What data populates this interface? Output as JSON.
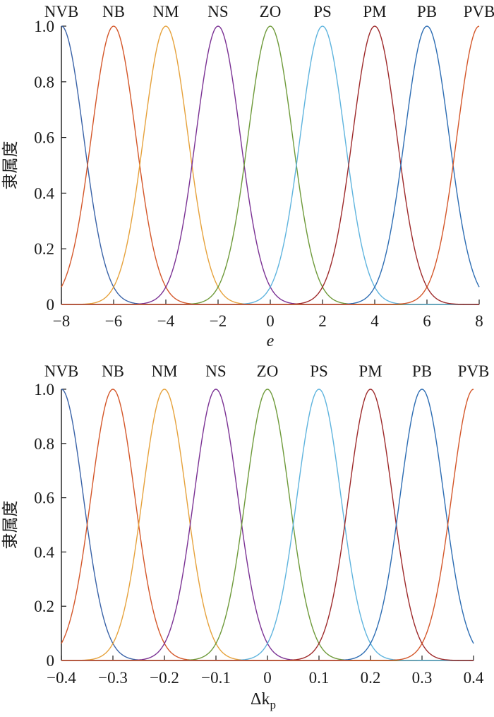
{
  "chart_data": [
    {
      "type": "line",
      "title": "",
      "xlabel": "e",
      "ylabel": "隶属度",
      "xlim": [
        -8,
        8
      ],
      "ylim": [
        0,
        1
      ],
      "x_ticks": [
        "−8",
        "−6",
        "−4",
        "−2",
        "0",
        "2",
        "4",
        "6",
        "8"
      ],
      "y_ticks": [
        "0",
        "0.2",
        "0.4",
        "0.6",
        "0.8",
        "1.0"
      ],
      "curve_shape": "gaussian",
      "sigma": 0.85,
      "grid": false,
      "legend": "none",
      "series": [
        {
          "name": "NVB",
          "center": -8,
          "color": "#3a63a8"
        },
        {
          "name": "NB",
          "center": -6,
          "color": "#d4572a"
        },
        {
          "name": "NM",
          "center": -4,
          "color": "#e6a23c"
        },
        {
          "name": "NS",
          "center": -2,
          "color": "#7b3294"
        },
        {
          "name": "ZO",
          "center": 0,
          "color": "#6e9a3a"
        },
        {
          "name": "PS",
          "center": 2,
          "color": "#5fb4de"
        },
        {
          "name": "PM",
          "center": 4,
          "color": "#9e2a2b"
        },
        {
          "name": "PB",
          "center": 6,
          "color": "#2d6db3"
        },
        {
          "name": "PVB",
          "center": 8,
          "color": "#d4572a"
        }
      ]
    },
    {
      "type": "line",
      "title": "",
      "xlabel_symbol": "Δk",
      "xlabel_subscript": "p",
      "ylabel": "隶属度",
      "xlim": [
        -0.4,
        0.4
      ],
      "ylim": [
        0,
        1
      ],
      "x_ticks": [
        "−0.4",
        "−0.3",
        "−0.2",
        "−0.1",
        "0",
        "0.1",
        "0.2",
        "0.3",
        "0.4"
      ],
      "y_ticks": [
        "0",
        "0.2",
        "0.4",
        "0.6",
        "0.8",
        "1.0"
      ],
      "curve_shape": "gaussian",
      "sigma": 0.0425,
      "grid": false,
      "legend": "none",
      "series": [
        {
          "name": "NVB",
          "center": -0.4,
          "color": "#3a63a8"
        },
        {
          "name": "NB",
          "center": -0.3,
          "color": "#d4572a"
        },
        {
          "name": "NM",
          "center": -0.2,
          "color": "#e6a23c"
        },
        {
          "name": "NS",
          "center": -0.1,
          "color": "#7b3294"
        },
        {
          "name": "ZO",
          "center": 0,
          "color": "#6e9a3a"
        },
        {
          "name": "PS",
          "center": 0.1,
          "color": "#5fb4de"
        },
        {
          "name": "PM",
          "center": 0.2,
          "color": "#9e2a2b"
        },
        {
          "name": "PB",
          "center": 0.3,
          "color": "#2d6db3"
        },
        {
          "name": "PVB",
          "center": 0.4,
          "color": "#d4572a"
        }
      ]
    }
  ]
}
